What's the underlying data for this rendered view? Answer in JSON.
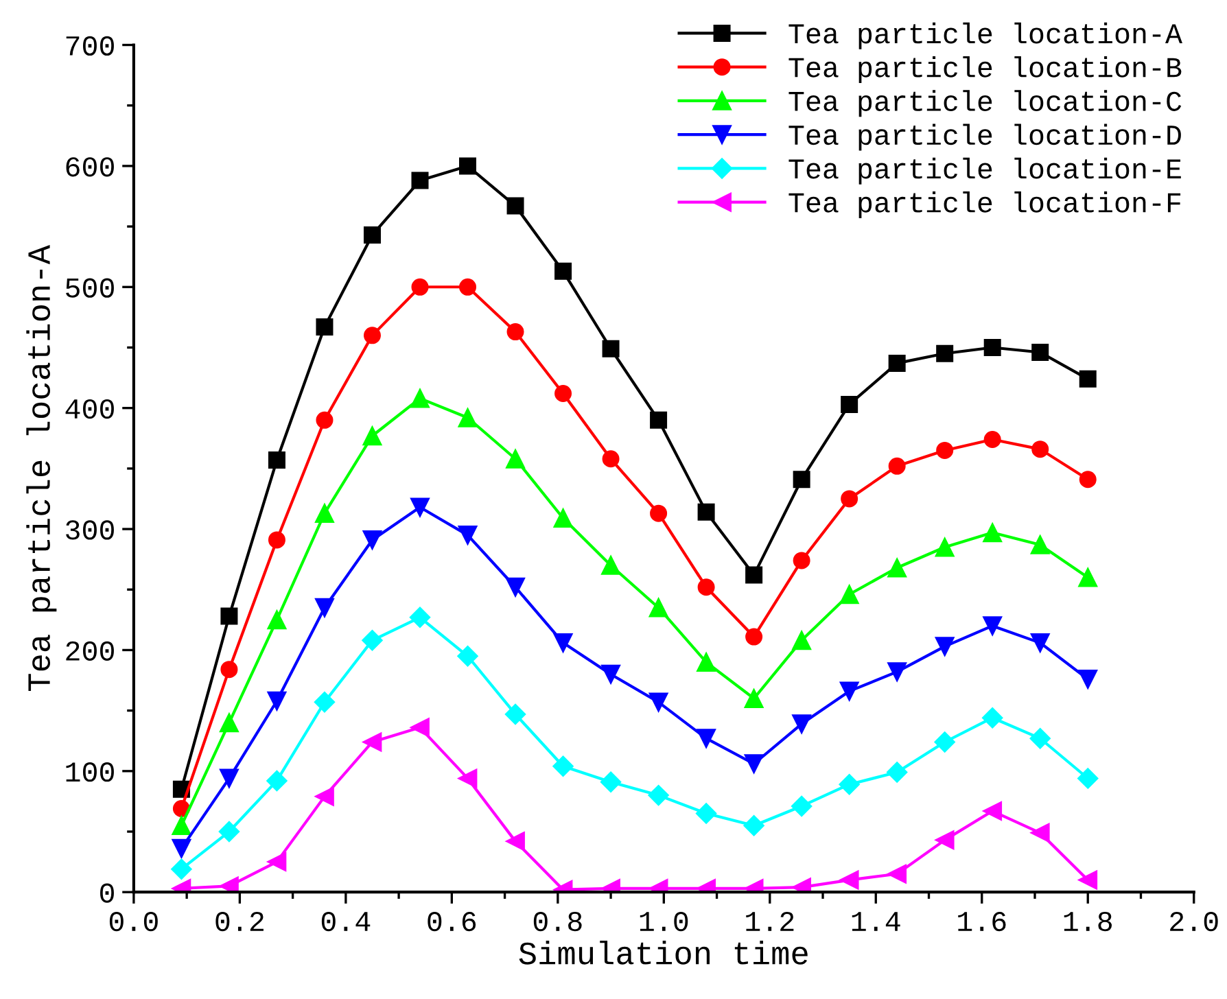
{
  "chart_data": {
    "type": "line",
    "xlabel": "Simulation time",
    "ylabel": "Tea particle location-A",
    "x": [
      0.09,
      0.18,
      0.27,
      0.36,
      0.45,
      0.54,
      0.63,
      0.72,
      0.81,
      0.9,
      0.99,
      1.08,
      1.17,
      1.26,
      1.35,
      1.44,
      1.53,
      1.62,
      1.71,
      1.8
    ],
    "series": [
      {
        "name": "Tea particle location-A",
        "color": "#000000",
        "marker": "square",
        "values": [
          85,
          228,
          357,
          467,
          543,
          588,
          600,
          567,
          513,
          449,
          390,
          314,
          262,
          341,
          403,
          437,
          445,
          450,
          446,
          424
        ]
      },
      {
        "name": "Tea particle location-B",
        "color": "#ff0000",
        "marker": "circle",
        "values": [
          69,
          184,
          291,
          390,
          460,
          500,
          500,
          463,
          412,
          358,
          313,
          252,
          211,
          274,
          325,
          352,
          365,
          374,
          366,
          341
        ]
      },
      {
        "name": "Tea particle location-C",
        "color": "#00ff00",
        "marker": "triangle",
        "values": [
          55,
          140,
          225,
          313,
          377,
          408,
          392,
          358,
          309,
          270,
          235,
          190,
          160,
          208,
          246,
          268,
          285,
          297,
          287,
          260
        ]
      },
      {
        "name": "Tea particle location-D",
        "color": "#0000ff",
        "marker": "triangle_down",
        "values": [
          36,
          94,
          158,
          235,
          291,
          318,
          295,
          252,
          206,
          180,
          157,
          127,
          106,
          139,
          166,
          182,
          203,
          220,
          206,
          176
        ]
      },
      {
        "name": "Tea particle location-E",
        "color": "#00ffff",
        "marker": "diamond",
        "values": [
          19,
          50,
          92,
          157,
          208,
          227,
          195,
          147,
          104,
          91,
          80,
          65,
          55,
          71,
          89,
          99,
          124,
          144,
          127,
          94
        ]
      },
      {
        "name": "Tea particle location-F",
        "color": "#ff00ff",
        "marker": "triangle_left",
        "values": [
          3,
          5,
          25,
          79,
          124,
          136,
          94,
          42,
          2,
          3,
          3,
          3,
          3,
          4,
          10,
          15,
          43,
          67,
          49,
          10
        ]
      }
    ],
    "xlim": [
      0.0,
      2.0
    ],
    "xticks": [
      {
        "value": 0.0,
        "label": "0.0"
      },
      {
        "value": 0.2,
        "label": "0.2"
      },
      {
        "value": 0.4,
        "label": "0.4"
      },
      {
        "value": 0.6,
        "label": "0.6"
      },
      {
        "value": 0.8,
        "label": "0.8"
      },
      {
        "value": 1.0,
        "label": "1.0"
      },
      {
        "value": 1.2,
        "label": "1.2"
      },
      {
        "value": 1.4,
        "label": "1.4"
      },
      {
        "value": 1.6,
        "label": "1.6"
      },
      {
        "value": 1.8,
        "label": "1.8"
      },
      {
        "value": 2.0,
        "label": "2.0"
      }
    ],
    "ylim": [
      0,
      700
    ],
    "yticks": [
      0,
      100,
      200,
      300,
      400,
      500,
      600,
      700
    ],
    "grid": false,
    "legend": "top right",
    "line_style": "solid"
  }
}
